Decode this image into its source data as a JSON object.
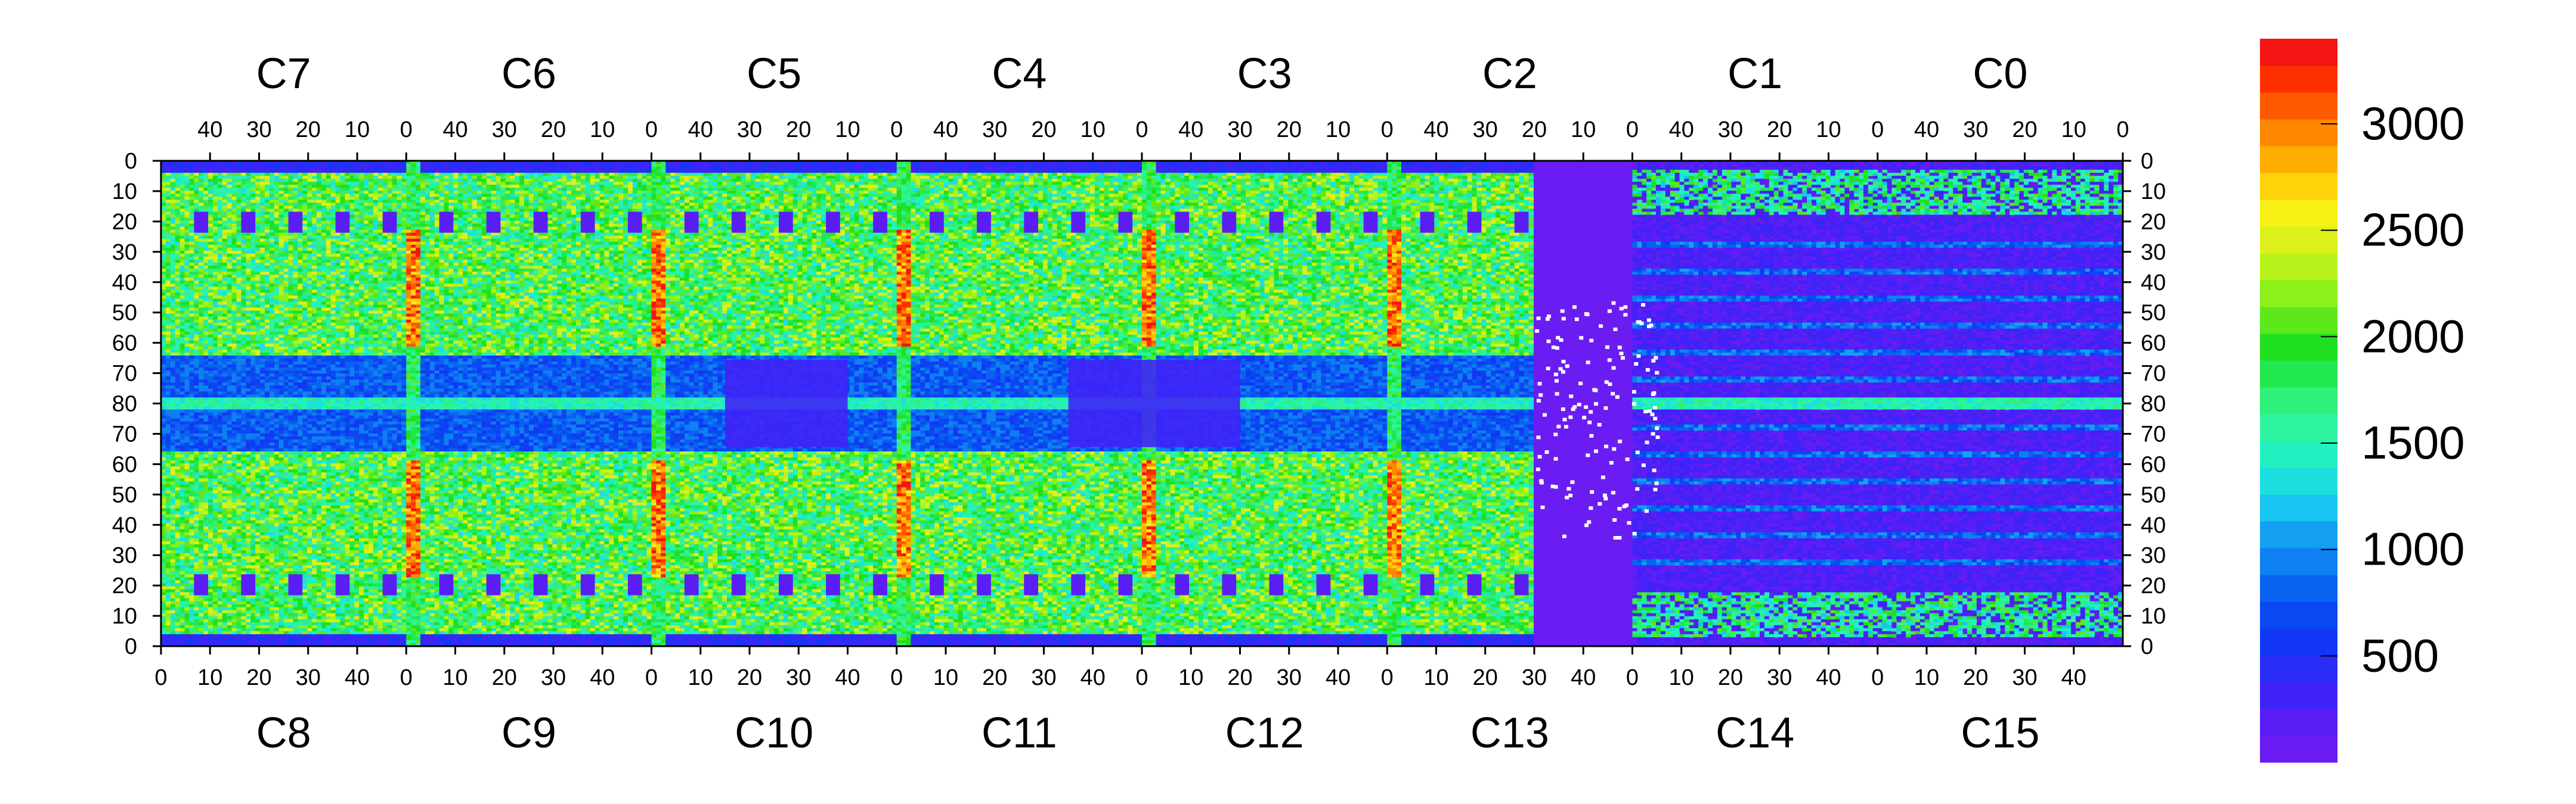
{
  "chart_data": {
    "type": "heatmap",
    "title": "",
    "xlabel": "",
    "ylabel": "",
    "top_chips": [
      "C7",
      "C6",
      "C5",
      "C4",
      "C3",
      "C2",
      "C1",
      "C0"
    ],
    "bottom_chips": [
      "C8",
      "C9",
      "C10",
      "C11",
      "C12",
      "C13",
      "C14",
      "C15"
    ],
    "top_tick_labels": [
      "40",
      "30",
      "20",
      "10",
      "0"
    ],
    "bottom_tick_labels": [
      "0",
      "10",
      "20",
      "30",
      "40"
    ],
    "y_tick_labels": [
      "0",
      "10",
      "20",
      "30",
      "40",
      "50",
      "60",
      "70",
      "80",
      "70",
      "60",
      "50",
      "40",
      "30",
      "20",
      "10",
      "0"
    ],
    "colorbar": {
      "range": [
        0,
        3400
      ],
      "ticks": [
        500,
        1000,
        1500,
        2000,
        2500,
        3000
      ],
      "tick_labels": [
        "500",
        "1000",
        "1500",
        "2000",
        "2500",
        "3000"
      ],
      "colors": [
        "#6a1cf2",
        "#5a1ef5",
        "#3f23f7",
        "#2a2cf8",
        "#1238f5",
        "#0a48f2",
        "#0a62f0",
        "#0e80f2",
        "#13a0f2",
        "#18c4f0",
        "#1ddfe0",
        "#22f0c0",
        "#2ef4a0",
        "#2ef07a",
        "#21e84f",
        "#1fe01f",
        "#5ce81a",
        "#8cf01a",
        "#b7f21a",
        "#def01a",
        "#f6f014",
        "#ffd20a",
        "#ffad00",
        "#ff8700",
        "#ff5a00",
        "#ff3000",
        "#f41414"
      ]
    },
    "features": {
      "bright_columns_x": [
        0,
        0,
        0,
        0,
        0,
        0,
        0
      ],
      "row_center": 80,
      "sparse_region_chip": "C13/C2 boundary",
      "low_region_chips": [
        "C14",
        "C15",
        "C1",
        "C0"
      ]
    }
  }
}
